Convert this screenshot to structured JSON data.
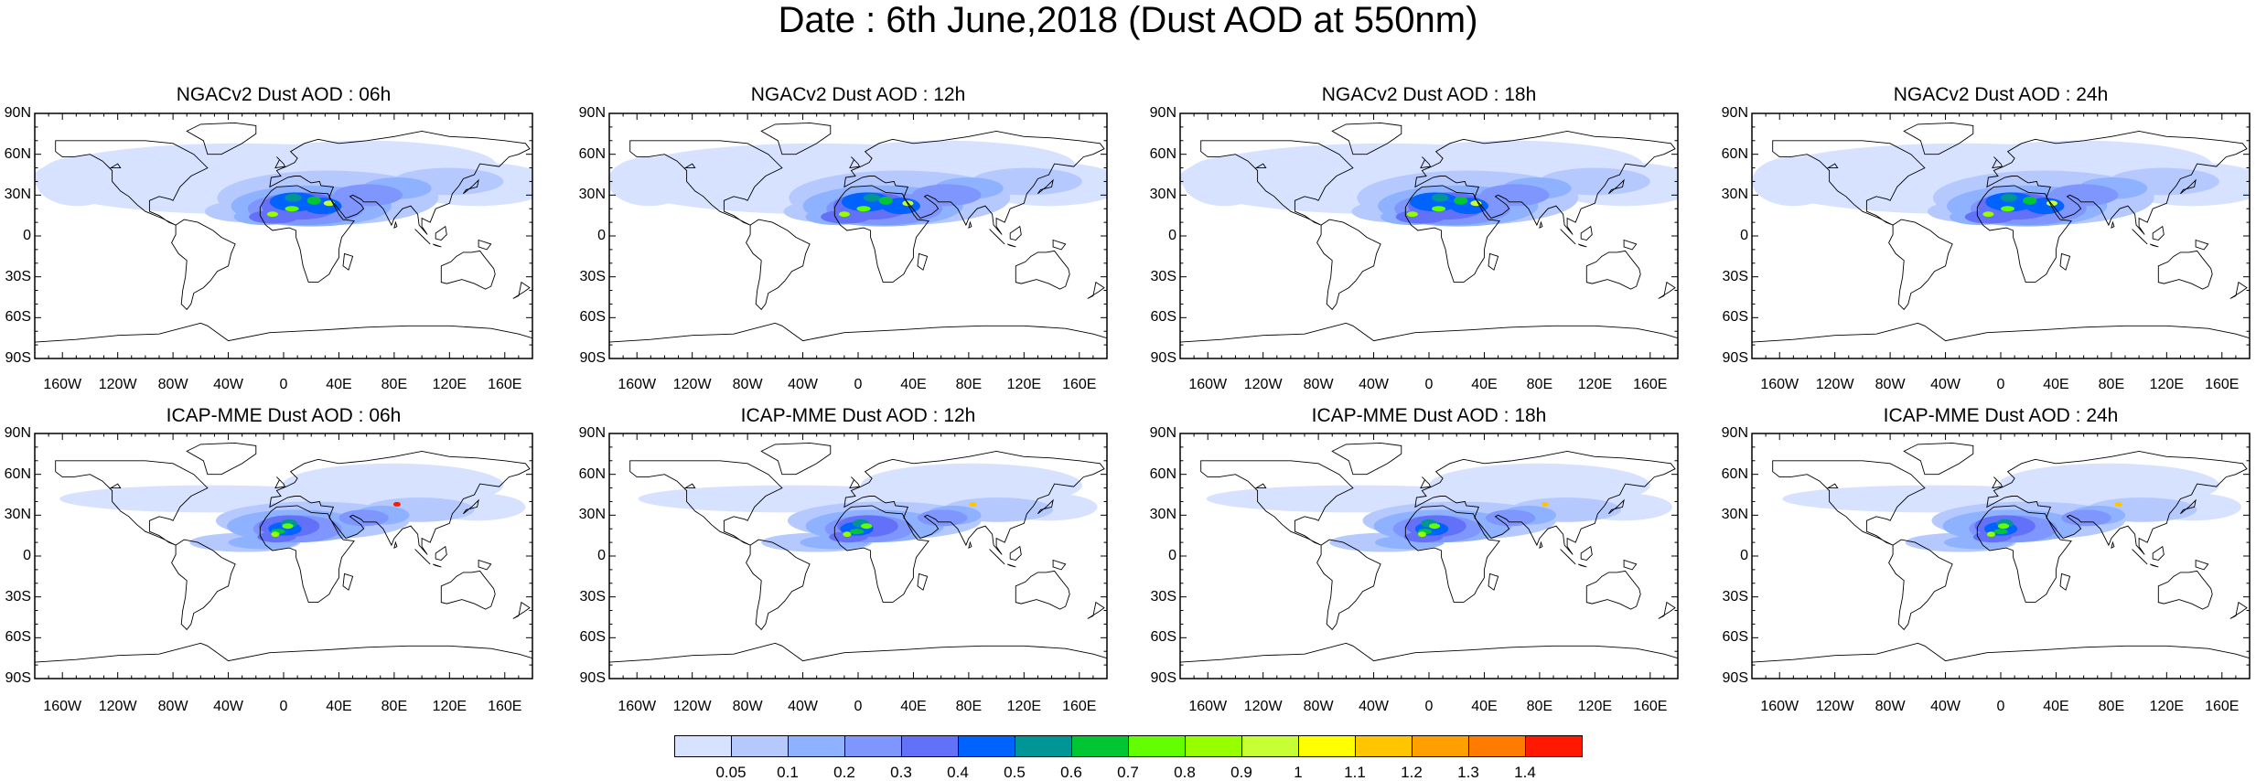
{
  "title": "Date : 6th June,2018 (Dust AOD at 550nm)",
  "panels": [
    {
      "title": "NGACv2 Dust AOD : 06h",
      "model": "NGACv2",
      "hour": "06h"
    },
    {
      "title": "NGACv2 Dust AOD : 12h",
      "model": "NGACv2",
      "hour": "12h"
    },
    {
      "title": "NGACv2 Dust AOD : 18h",
      "model": "NGACv2",
      "hour": "18h"
    },
    {
      "title": "NGACv2 Dust AOD : 24h",
      "model": "NGACv2",
      "hour": "24h"
    },
    {
      "title": "ICAP-MME Dust AOD : 06h",
      "model": "ICAP-MME",
      "hour": "06h"
    },
    {
      "title": "ICAP-MME Dust AOD : 12h",
      "model": "ICAP-MME",
      "hour": "12h"
    },
    {
      "title": "ICAP-MME Dust AOD : 18h",
      "model": "ICAP-MME",
      "hour": "18h"
    },
    {
      "title": "ICAP-MME Dust AOD : 24h",
      "model": "ICAP-MME",
      "hour": "24h"
    }
  ],
  "lat_ticks": [
    "90N",
    "60N",
    "30N",
    "0",
    "30S",
    "60S",
    "90S"
  ],
  "lon_ticks": [
    "160W",
    "120W",
    "80W",
    "40W",
    "0",
    "40E",
    "80E",
    "120E",
    "160E"
  ],
  "lat_values": [
    90,
    60,
    30,
    0,
    -30,
    -60,
    -90
  ],
  "lon_values": [
    -160,
    -120,
    -80,
    -40,
    0,
    40,
    80,
    120,
    160
  ],
  "colorbar": {
    "labels": [
      "0.05",
      "0.1",
      "0.2",
      "0.3",
      "0.4",
      "0.5",
      "0.6",
      "0.7",
      "0.8",
      "0.9",
      "1",
      "1.1",
      "1.2",
      "1.3",
      "1.4"
    ],
    "colors": [
      "#ffffff",
      "#d6e2ff",
      "#b5c9ff",
      "#8eb2ff",
      "#7f96ff",
      "#6370f8",
      "#0063ff",
      "#009696",
      "#00c633",
      "#63ff00",
      "#96ff00",
      "#c6ff33",
      "#ffff00",
      "#ffc600",
      "#ffa000",
      "#ff7c00",
      "#ff1900"
    ]
  }
}
